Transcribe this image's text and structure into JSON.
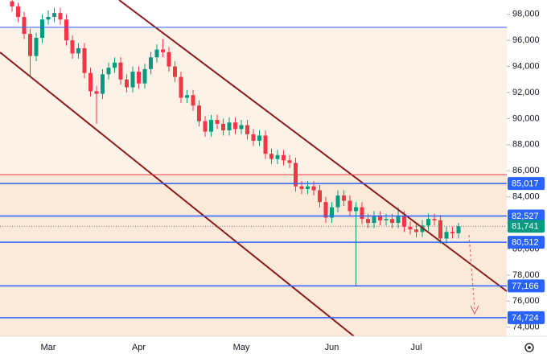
{
  "chart_data": {
    "type": "candlestick",
    "categories": [
      null,
      null,
      null,
      null,
      null,
      null,
      "Mar",
      null,
      null,
      null,
      null,
      null,
      null,
      null,
      null,
      null,
      null,
      null,
      null,
      null,
      null,
      "Apr",
      null,
      null,
      null,
      null,
      null,
      null,
      null,
      null,
      null,
      null,
      null,
      null,
      null,
      null,
      null,
      null,
      "May",
      null,
      null,
      null,
      null,
      null,
      null,
      null,
      null,
      null,
      null,
      null,
      null,
      null,
      null,
      "Jun",
      null,
      null,
      null,
      null,
      null,
      null,
      null,
      null,
      null,
      null,
      null,
      null,
      null,
      "Jul",
      null,
      null,
      null,
      null,
      null,
      null,
      null
    ],
    "open": [
      99000,
      98600,
      97800,
      96500,
      94800,
      96200,
      97600,
      97800,
      98100,
      97600,
      96000,
      95000,
      95400,
      93500,
      92100,
      91900,
      93400,
      93900,
      94300,
      93000,
      92400,
      93600,
      92700,
      93800,
      94700,
      95300,
      95100,
      94000,
      93200,
      91600,
      91800,
      91000,
      89800,
      89000,
      89900,
      89600,
      89100,
      89700,
      89200,
      89500,
      88800,
      88300,
      88700,
      87300,
      86900,
      87200,
      86800,
      86600,
      84800,
      84600,
      84800,
      84500,
      83600,
      82400,
      83200,
      84100,
      83700,
      82900,
      83200,
      82300,
      82000,
      82500,
      82200,
      82300,
      82000,
      82500,
      81700,
      81500,
      81300,
      81800,
      82300,
      82200,
      80800,
      81300,
      81200
    ],
    "high": [
      99300,
      98900,
      98200,
      96900,
      96600,
      98000,
      98300,
      98500,
      98500,
      98000,
      96400,
      95800,
      95800,
      93900,
      92500,
      93800,
      94300,
      94700,
      94700,
      93400,
      94000,
      94000,
      94200,
      95100,
      95700,
      96100,
      95500,
      94400,
      93600,
      92200,
      92200,
      91400,
      90200,
      90300,
      90300,
      90000,
      90100,
      90100,
      89900,
      89900,
      89200,
      89100,
      89100,
      87700,
      87600,
      87600,
      87200,
      87000,
      85200,
      85200,
      85200,
      84900,
      84000,
      83600,
      84500,
      84500,
      84100,
      83600,
      83600,
      82700,
      82900,
      82900,
      82700,
      82700,
      83200,
      82900,
      82100,
      81900,
      82200,
      82700,
      82700,
      82600,
      81700,
      81700,
      82000
    ],
    "low": [
      98200,
      97400,
      96100,
      93200,
      94400,
      95800,
      97200,
      97400,
      97200,
      95600,
      94600,
      94600,
      93100,
      91700,
      89600,
      91500,
      93000,
      93500,
      92600,
      92000,
      92000,
      92300,
      92300,
      93400,
      94300,
      94700,
      93600,
      92800,
      91200,
      91200,
      90600,
      89400,
      88600,
      88600,
      89200,
      88700,
      88700,
      88800,
      88800,
      88400,
      87900,
      87900,
      86900,
      86500,
      86500,
      86400,
      86200,
      84400,
      84200,
      84200,
      84100,
      83200,
      82000,
      82000,
      82800,
      83300,
      82500,
      77200,
      81900,
      81600,
      81600,
      81800,
      81800,
      81600,
      81600,
      81300,
      81100,
      80900,
      80900,
      81400,
      81800,
      80400,
      80400,
      80800,
      80800
    ],
    "close": [
      98600,
      97800,
      96500,
      94800,
      96200,
      97600,
      97800,
      98100,
      97600,
      96000,
      95000,
      95400,
      93500,
      92100,
      91900,
      93400,
      93900,
      94300,
      93000,
      92400,
      93600,
      92700,
      93800,
      94700,
      95300,
      95100,
      94000,
      93200,
      91600,
      91800,
      91000,
      89800,
      89000,
      89900,
      89600,
      89100,
      89700,
      89200,
      89500,
      88800,
      88300,
      88700,
      87300,
      86900,
      87200,
      86800,
      86600,
      84800,
      84600,
      84800,
      84500,
      83600,
      82400,
      83200,
      84100,
      83700,
      82900,
      83200,
      82300,
      82000,
      82500,
      82200,
      82300,
      82000,
      82500,
      81700,
      81500,
      81300,
      81800,
      82300,
      82200,
      80800,
      81300,
      81200,
      81741
    ],
    "up_color": "#089981",
    "down_color": "#f23645",
    "ylim": [
      73300,
      99100
    ],
    "yticks": [
      {
        "value": 74000,
        "label": "74,000"
      },
      {
        "value": 76000,
        "label": "76,000"
      },
      {
        "value": 78000,
        "label": "78,000"
      },
      {
        "value": 80000,
        "label": "80,000"
      },
      {
        "value": 82000,
        "label": "82,000"
      },
      {
        "value": 84000,
        "label": "84,000"
      },
      {
        "value": 86000,
        "label": "86,000"
      },
      {
        "value": 88000,
        "label": "88,000"
      },
      {
        "value": 90000,
        "label": "90,000"
      },
      {
        "value": 92000,
        "label": "92,000"
      },
      {
        "value": 94000,
        "label": "94,000"
      },
      {
        "value": 96000,
        "label": "96,000"
      },
      {
        "value": 98000,
        "label": "98,000"
      }
    ],
    "levels": [
      {
        "value": 97000,
        "color": "#2962ff"
      },
      {
        "value": 85700,
        "color": "#f23645"
      },
      {
        "value": 85017,
        "label": "85,017",
        "color": "#2962ff"
      },
      {
        "value": 82527,
        "label": "82,527",
        "color": "#2962ff"
      },
      {
        "value": 80512,
        "label": "80,512",
        "color": "#2962ff"
      },
      {
        "value": 77166,
        "label": "77,166",
        "color": "#2962ff"
      },
      {
        "value": 74724,
        "label": "74,724",
        "color": "#2962ff"
      }
    ],
    "last_price": {
      "value": 81741,
      "label": "81,741",
      "color": "#089981"
    }
  }
}
